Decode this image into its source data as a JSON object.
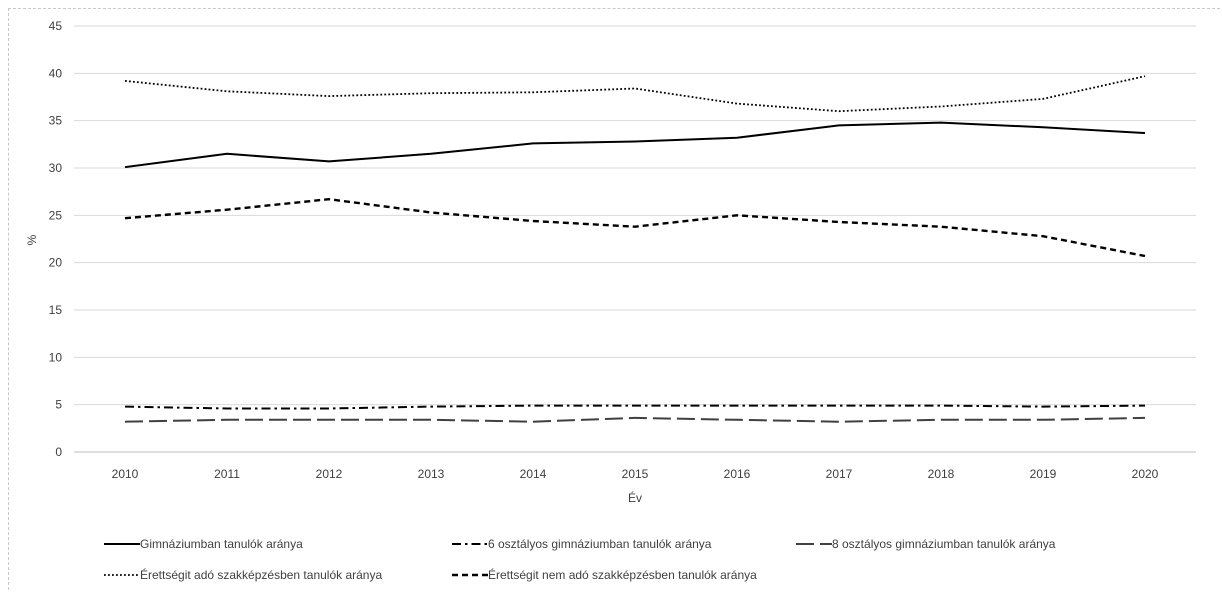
{
  "chart_data": {
    "type": "line",
    "title": "",
    "xlabel": "Év",
    "ylabel": "%",
    "ylim": [
      0,
      45
    ],
    "yticks": [
      0,
      5,
      10,
      15,
      20,
      25,
      30,
      35,
      40,
      45
    ],
    "grid": "horizontal",
    "legend_position": "bottom",
    "x": [
      "2010",
      "2011",
      "2012",
      "2013",
      "2014",
      "2015",
      "2016",
      "2017",
      "2018",
      "2019",
      "2020"
    ],
    "series": [
      {
        "name": "Gimnáziumban tanulók aránya",
        "style": "solid",
        "color": "#000000",
        "values": [
          30.1,
          31.5,
          30.7,
          31.5,
          32.6,
          32.8,
          33.2,
          34.5,
          34.8,
          34.3,
          33.7
        ]
      },
      {
        "name": "6 osztályos gimnáziumban tanulók aránya",
        "style": "dash-dot",
        "color": "#000000",
        "values": [
          4.8,
          4.6,
          4.6,
          4.8,
          4.9,
          4.9,
          4.9,
          4.9,
          4.9,
          4.8,
          4.9
        ]
      },
      {
        "name": "8 osztályos gimnáziumban tanulók aránya",
        "style": "long-dash",
        "color": "#404040",
        "values": [
          3.2,
          3.4,
          3.4,
          3.4,
          3.2,
          3.6,
          3.4,
          3.2,
          3.4,
          3.4,
          3.6
        ]
      },
      {
        "name": "Érettségit adó szakképzésben tanulók aránya",
        "style": "dotted",
        "color": "#000000",
        "values": [
          39.2,
          38.1,
          37.6,
          37.9,
          38.0,
          38.4,
          36.8,
          36.0,
          36.5,
          37.3,
          39.7
        ]
      },
      {
        "name": "Érettségit nem adó szakképzésben tanulók aránya",
        "style": "dashed",
        "color": "#000000",
        "values": [
          24.7,
          25.6,
          26.7,
          25.3,
          24.4,
          23.8,
          25.0,
          24.3,
          23.8,
          22.8,
          20.7
        ]
      }
    ]
  }
}
